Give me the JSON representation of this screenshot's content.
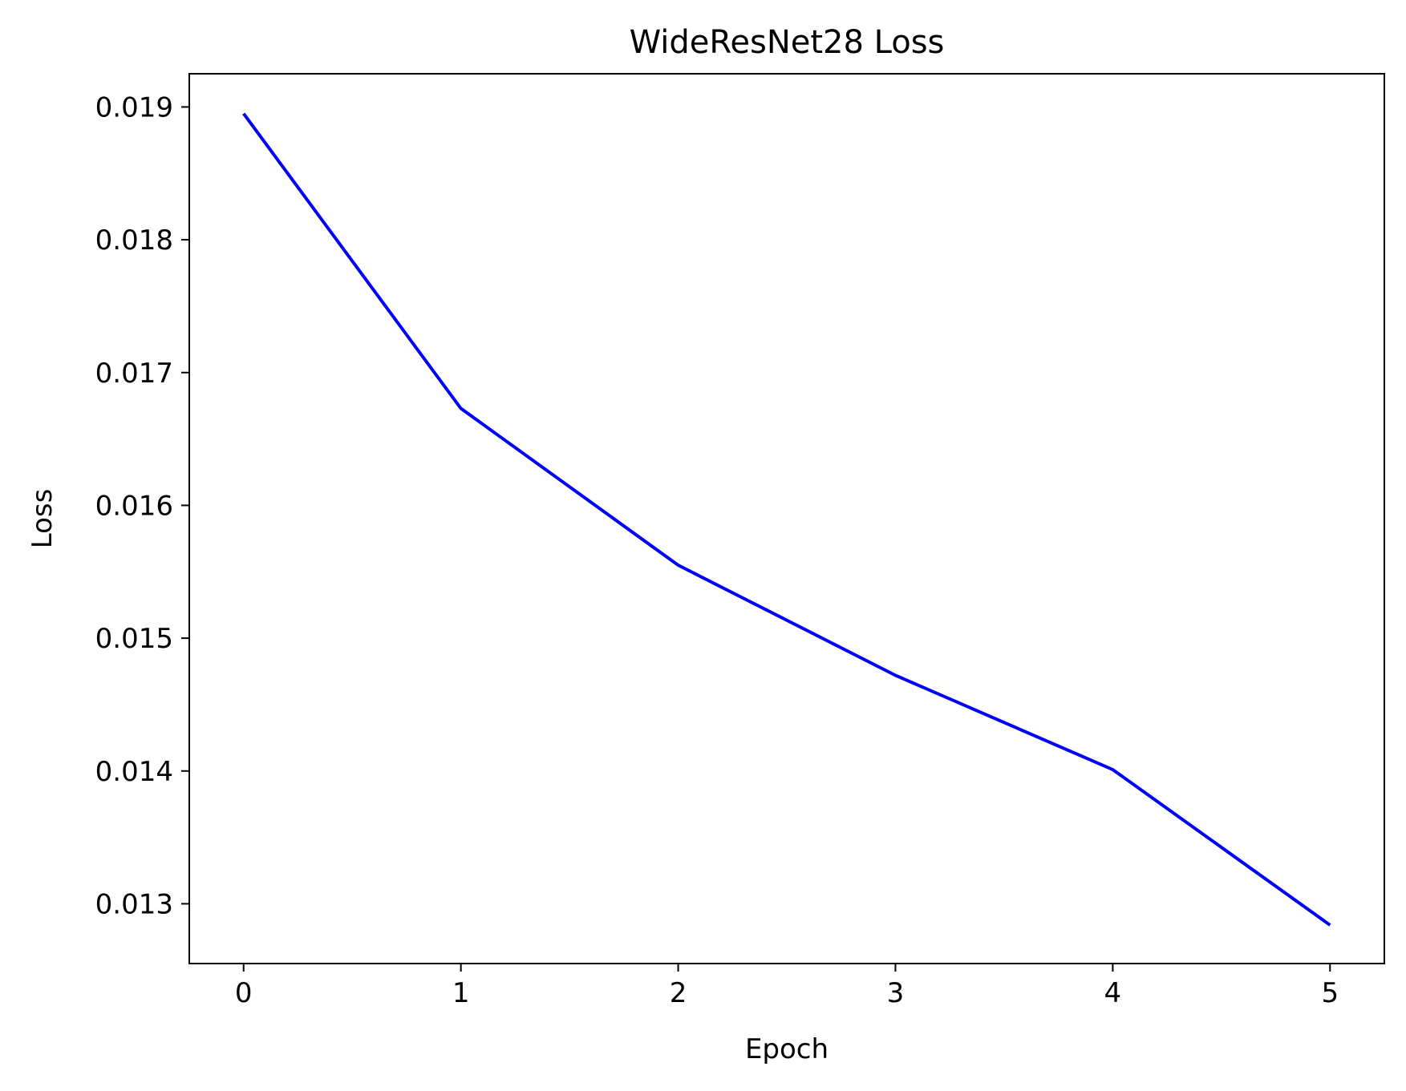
{
  "chart_data": {
    "type": "line",
    "title": "WideResNet28 Loss",
    "xlabel": "Epoch",
    "ylabel": "Loss",
    "x": [
      0,
      1,
      2,
      3,
      4,
      5
    ],
    "series": [
      {
        "values": [
          0.01895,
          0.01673,
          0.01555,
          0.01472,
          0.01401,
          0.01284
        ],
        "color": "#0000ff"
      }
    ],
    "xlim": [
      -0.25,
      5.25
    ],
    "ylim": [
      0.01255,
      0.01925
    ],
    "xticks": [
      0,
      1,
      2,
      3,
      4,
      5
    ],
    "xtick_labels": [
      "0",
      "1",
      "2",
      "3",
      "4",
      "5"
    ],
    "yticks": [
      0.013,
      0.014,
      0.015,
      0.016,
      0.017,
      0.018,
      0.019
    ],
    "ytick_labels": [
      "0.013",
      "0.014",
      "0.015",
      "0.016",
      "0.017",
      "0.018",
      "0.019"
    ],
    "grid": false,
    "legend": "none"
  }
}
